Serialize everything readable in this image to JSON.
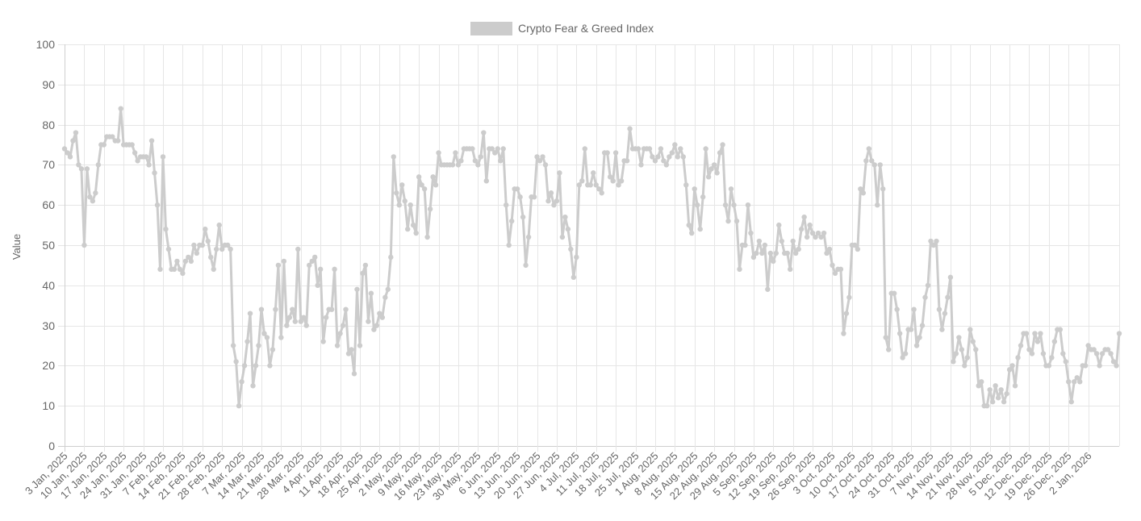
{
  "chart_data": {
    "type": "line",
    "title": "",
    "xlabel": "",
    "ylabel": "Value",
    "ylim": [
      0,
      100
    ],
    "yticks": [
      0,
      10,
      20,
      30,
      40,
      50,
      60,
      70,
      80,
      90,
      100
    ],
    "grid": true,
    "legend_position": "top-center",
    "series_color": "#cccccc",
    "x_tick_labels": [
      "3 Jan, 2025",
      "10 Jan, 2025",
      "17 Jan, 2025",
      "24 Jan, 2025",
      "31 Jan, 2025",
      "7 Feb, 2025",
      "14 Feb, 2025",
      "21 Feb, 2025",
      "28 Feb, 2025",
      "7 Mar, 2025",
      "14 Mar, 2025",
      "21 Mar, 2025",
      "28 Mar, 2025",
      "4 Apr, 2025",
      "11 Apr, 2025",
      "18 Apr, 2025",
      "25 Apr, 2025",
      "2 May, 2025",
      "9 May, 2025",
      "16 May, 2025",
      "23 May, 2025",
      "30 May, 2025",
      "6 Jun, 2025",
      "13 Jun, 2025",
      "20 Jun, 2025",
      "27 Jun, 2025",
      "4 Jul, 2025",
      "11 Jul, 2025",
      "18 Jul, 2025",
      "25 Jul, 2025",
      "1 Aug, 2025",
      "8 Aug, 2025",
      "15 Aug, 2025",
      "22 Aug, 2025",
      "29 Aug, 2025",
      "5 Sep, 2025",
      "12 Sep, 2025",
      "19 Sep, 2025",
      "26 Sep, 2025",
      "3 Oct, 2025",
      "10 Oct, 2025",
      "17 Oct, 2025",
      "24 Oct, 2025",
      "31 Oct, 2025",
      "7 Nov, 2025",
      "14 Nov, 2025",
      "21 Nov, 2025",
      "28 Nov, 2025",
      "5 Dec, 2025",
      "12 Dec, 2025",
      "19 Dec, 2025",
      "26 Dec, 2025",
      "2 Jan, 2026"
    ],
    "series": [
      {
        "name": "Crypto Fear & Greed Index",
        "start_date": "2025-01-03",
        "values": [
          74,
          73,
          72,
          76,
          78,
          70,
          69,
          50,
          69,
          62,
          61,
          63,
          70,
          75,
          75,
          77,
          77,
          77,
          76,
          76,
          84,
          75,
          75,
          75,
          75,
          73,
          71,
          72,
          72,
          72,
          70,
          76,
          68,
          60,
          44,
          72,
          54,
          49,
          44,
          44,
          46,
          44,
          43,
          46,
          47,
          46,
          50,
          48,
          50,
          50,
          54,
          51,
          47,
          44,
          49,
          55,
          49,
          50,
          50,
          49,
          25,
          21,
          10,
          16,
          20,
          26,
          33,
          15,
          20,
          25,
          34,
          28,
          27,
          20,
          24,
          34,
          45,
          27,
          46,
          30,
          32,
          34,
          31,
          49,
          31,
          32,
          30,
          45,
          46,
          47,
          40,
          44,
          26,
          32,
          34,
          34,
          44,
          25,
          28,
          30,
          34,
          23,
          24,
          18,
          39,
          25,
          43,
          45,
          31,
          38,
          29,
          30,
          33,
          32,
          37,
          39,
          47,
          72,
          63,
          60,
          65,
          61,
          54,
          60,
          55,
          53,
          67,
          65,
          64,
          52,
          59,
          67,
          65,
          73,
          70,
          70,
          70,
          70,
          70,
          73,
          70,
          71,
          74,
          74,
          74,
          74,
          71,
          70,
          72,
          78,
          66,
          74,
          74,
          73,
          74,
          71,
          74,
          60,
          50,
          56,
          64,
          64,
          62,
          57,
          45,
          52,
          62,
          62,
          72,
          71,
          72,
          70,
          61,
          63,
          60,
          61,
          68,
          52,
          57,
          54,
          49,
          42,
          47,
          65,
          66,
          74,
          65,
          65,
          68,
          65,
          64,
          63,
          73,
          73,
          67,
          66,
          73,
          65,
          66,
          71,
          71,
          79,
          74,
          74,
          74,
          70,
          74,
          74,
          74,
          72,
          71,
          72,
          74,
          71,
          70,
          72,
          73,
          75,
          72,
          74,
          72,
          65,
          55,
          53,
          64,
          60,
          54,
          62,
          74,
          67,
          69,
          70,
          68,
          73,
          75,
          60,
          56,
          64,
          60,
          56,
          44,
          50,
          50,
          60,
          53,
          47,
          48,
          51,
          48,
          50,
          39,
          48,
          46,
          48,
          55,
          51,
          48,
          48,
          44,
          51,
          48,
          49,
          54,
          57,
          52,
          55,
          53,
          52,
          53,
          52,
          53,
          48,
          49,
          45,
          43,
          44,
          44,
          28,
          33,
          37,
          50,
          50,
          49,
          64,
          63,
          71,
          74,
          71,
          70,
          60,
          70,
          64,
          27,
          24,
          38,
          38,
          34,
          28,
          22,
          23,
          29,
          29,
          34,
          25,
          27,
          30,
          37,
          40,
          51,
          50,
          51,
          34,
          29,
          33,
          37,
          42,
          21,
          23,
          27,
          24,
          20,
          22,
          29,
          26,
          24,
          15,
          16,
          10,
          10,
          14,
          11,
          15,
          12,
          14,
          11,
          13,
          19,
          20,
          15,
          22,
          25,
          28,
          28,
          24,
          23,
          28,
          26,
          28,
          23,
          20,
          20,
          22,
          26,
          29,
          29,
          23,
          21,
          16,
          11,
          16,
          17,
          16,
          20,
          20,
          25,
          24,
          24,
          23,
          20,
          23,
          24,
          24,
          23,
          21,
          20,
          28
        ]
      }
    ]
  }
}
